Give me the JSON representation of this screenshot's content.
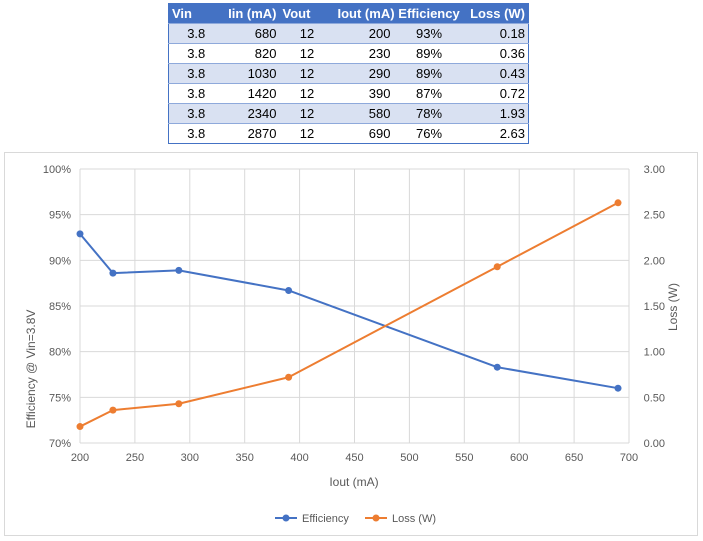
{
  "table": {
    "headers": [
      "Vin",
      "Iin (mA)",
      "Vout",
      "Iout (mA)",
      "Efficiency",
      "Loss (W)"
    ],
    "rows": [
      [
        "3.8",
        "680",
        "12",
        "200",
        "93%",
        "0.18"
      ],
      [
        "3.8",
        "820",
        "12",
        "230",
        "89%",
        "0.36"
      ],
      [
        "3.8",
        "1030",
        "12",
        "290",
        "89%",
        "0.43"
      ],
      [
        "3.8",
        "1420",
        "12",
        "390",
        "87%",
        "0.72"
      ],
      [
        "3.8",
        "2340",
        "12",
        "580",
        "78%",
        "1.93"
      ],
      [
        "3.8",
        "2870",
        "12",
        "690",
        "76%",
        "2.63"
      ]
    ]
  },
  "chart_data": {
    "type": "line",
    "title": "",
    "xlabel": "Iout (mA)",
    "ylabel": "Efficiency @ Vin=3.8V",
    "y2label": "Loss (W)",
    "x": [
      200,
      230,
      290,
      390,
      580,
      690
    ],
    "xlim": [
      200,
      700
    ],
    "xticks": [
      "200",
      "250",
      "300",
      "350",
      "400",
      "450",
      "500",
      "550",
      "600",
      "650",
      "700"
    ],
    "ylim": [
      70,
      100
    ],
    "yticks": [
      "70%",
      "75%",
      "80%",
      "85%",
      "90%",
      "95%",
      "100%"
    ],
    "y2lim": [
      0,
      3
    ],
    "y2ticks": [
      "0.00",
      "0.50",
      "1.00",
      "1.50",
      "2.00",
      "2.50",
      "3.00"
    ],
    "grid": true,
    "legend_position": "bottom",
    "series": [
      {
        "name": "Efficiency",
        "axis": "left",
        "color": "#4472c4",
        "values": [
          92.9,
          88.6,
          88.9,
          86.7,
          78.3,
          76.0
        ]
      },
      {
        "name": "Loss (W)",
        "axis": "right",
        "color": "#ed7d31",
        "values": [
          0.18,
          0.36,
          0.43,
          0.72,
          1.93,
          2.63
        ]
      }
    ]
  }
}
